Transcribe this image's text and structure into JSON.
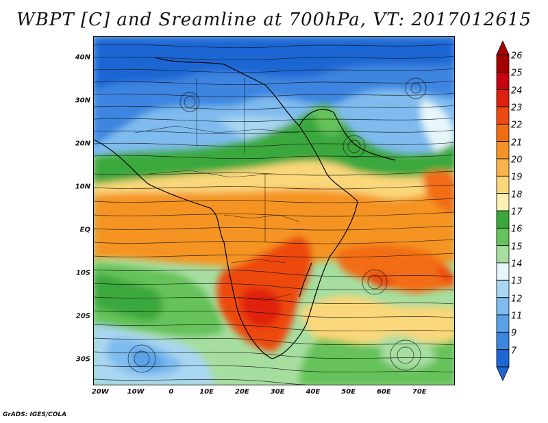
{
  "title": "WBPT [C] and Sreamline at 700hPa, VT: 2017012615",
  "credit": "GrADS: IGES/COLA",
  "map": {
    "lat_ticks": [
      "40N",
      "30N",
      "20N",
      "10N",
      "EQ",
      "10S",
      "20S",
      "30S"
    ],
    "lon_ticks": [
      "20W",
      "10W",
      "0",
      "10E",
      "20E",
      "30E",
      "40E",
      "50E",
      "60E",
      "70E"
    ],
    "lon_range": [
      -22,
      80
    ],
    "lat_range": [
      -36,
      45
    ]
  },
  "colorbar": {
    "labels": [
      "26",
      "25",
      "24",
      "23",
      "22",
      "21",
      "20",
      "19",
      "18",
      "17",
      "16",
      "15",
      "14",
      "13",
      "12",
      "11",
      "9",
      "7"
    ],
    "colors": [
      "#a50000",
      "#c8000f",
      "#e0200f",
      "#ee4a10",
      "#f26d12",
      "#f59424",
      "#f8b44a",
      "#fad77a",
      "#fcf0b4",
      "#3aa83c",
      "#66c25a",
      "#a6dea0",
      "#e6f6fb",
      "#a9d6f2",
      "#7fbbee",
      "#5aa1e8",
      "#3c85e0",
      "#1f66d4"
    ]
  }
}
